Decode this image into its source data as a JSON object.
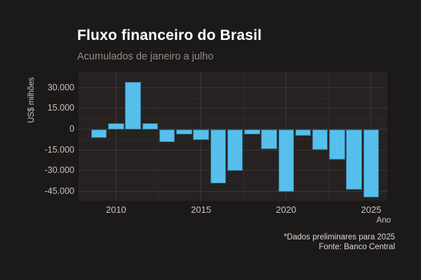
{
  "footer": {
    "note": "*Dados preliminares para 2025",
    "source": "Fonte: Banco Central"
  },
  "chart_data": {
    "type": "bar",
    "title": "Fluxo financeiro do Brasil",
    "subtitle": "Acumulados de janeiro a julho",
    "xlabel": "Ano",
    "ylabel": "US$ milhões",
    "categories": [
      2009,
      2010,
      2011,
      2012,
      2013,
      2014,
      2015,
      2016,
      2017,
      2018,
      2019,
      2020,
      2021,
      2022,
      2023,
      2024,
      2025
    ],
    "values": [
      -6400,
      4200,
      34200,
      4500,
      -9300,
      -3800,
      -7600,
      -39000,
      -30000,
      -3700,
      -14400,
      -45300,
      -4900,
      -14900,
      -21800,
      -43700,
      -49600
    ],
    "ylim": [
      -51900,
      41300
    ],
    "xlim": [
      2007.8,
      2025.95
    ],
    "yticks": [
      {
        "value": 30000,
        "label": "30.000"
      },
      {
        "value": 15000,
        "label": "15.000"
      },
      {
        "value": 0,
        "label": "0"
      },
      {
        "value": -15000,
        "label": "-15.000"
      },
      {
        "value": -30000,
        "label": "-30.000"
      },
      {
        "value": -45000,
        "label": "-45.000"
      }
    ],
    "xticks": [
      {
        "value": 2010,
        "label": "2010"
      },
      {
        "value": 2015,
        "label": "2015"
      },
      {
        "value": 2020,
        "label": "2020"
      },
      {
        "value": 2025,
        "label": "2025"
      }
    ],
    "y_minor_grid": [
      37500,
      22500,
      7500,
      -7500,
      -22500,
      -37500
    ],
    "x_minor_grid": [
      2012.5,
      2017.5,
      2022.5
    ],
    "grid": true,
    "legend": false,
    "bar_color": "#56bfec",
    "bar_border_color": "#36708c",
    "background_color": "#1c1a19",
    "panel_color": "#252221"
  }
}
